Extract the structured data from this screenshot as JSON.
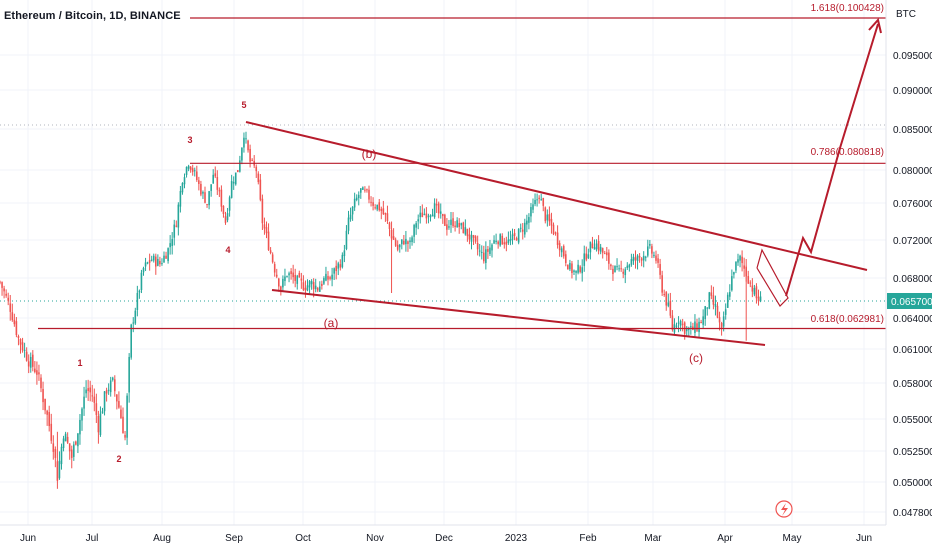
{
  "header": {
    "symbol_title": "Ethereum / Bitcoin, 1D, BINANCE"
  },
  "colors": {
    "up": "#26a69a",
    "down": "#ef5350",
    "drawing": "#b71c2c",
    "axis_text": "#131722",
    "grid": "#f0f3fa",
    "price_tag_bg": "#26a69a"
  },
  "chart_data": {
    "type": "candlestick",
    "title": "Ethereum / Bitcoin, 1D, BINANCE",
    "currency_label": "BTC",
    "y_ticks": [
      "0.095000",
      "0.090000",
      "0.085000",
      "0.080000",
      "0.076000",
      "0.072000",
      "0.068000",
      "0.064000",
      "0.061000",
      "0.058000",
      "0.055000",
      "0.052500",
      "0.050000",
      "0.047800"
    ],
    "x_ticks": [
      "Jun",
      "Jul",
      "Aug",
      "Sep",
      "Oct",
      "Nov",
      "Dec",
      "2023",
      "Feb",
      "Mar",
      "Apr",
      "May",
      "Jun"
    ],
    "last_price": "0.065700",
    "ylim": [
      0.0478,
      0.1005
    ],
    "price_path_daily_close": [
      [
        0,
        0.0676
      ],
      [
        5,
        0.065
      ],
      [
        9,
        0.062
      ],
      [
        14,
        0.06
      ],
      [
        18,
        0.059
      ],
      [
        22,
        0.056
      ],
      [
        26,
        0.053
      ],
      [
        28,
        0.0505
      ],
      [
        31,
        0.054
      ],
      [
        35,
        0.052
      ],
      [
        39,
        0.055
      ],
      [
        42,
        0.0575
      ],
      [
        45,
        0.057
      ],
      [
        48,
        0.0545
      ],
      [
        52,
        0.0575
      ],
      [
        55,
        0.058
      ],
      [
        58,
        0.056
      ],
      [
        61,
        0.0535
      ],
      [
        64,
        0.063
      ],
      [
        67,
        0.066
      ],
      [
        70,
        0.069
      ],
      [
        74,
        0.07
      ],
      [
        78,
        0.0695
      ],
      [
        82,
        0.071
      ],
      [
        86,
        0.074
      ],
      [
        89,
        0.079
      ],
      [
        92,
        0.081
      ],
      [
        95,
        0.0795
      ],
      [
        98,
        0.0775
      ],
      [
        101,
        0.076
      ],
      [
        104,
        0.0795
      ],
      [
        107,
        0.077
      ],
      [
        110,
        0.074
      ],
      [
        113,
        0.0785
      ],
      [
        116,
        0.08
      ],
      [
        119,
        0.0845
      ],
      [
        122,
        0.081
      ],
      [
        125,
        0.08
      ],
      [
        128,
        0.074
      ],
      [
        131,
        0.0715
      ],
      [
        134,
        0.069
      ],
      [
        137,
        0.067
      ],
      [
        140,
        0.0685
      ],
      [
        143,
        0.068
      ],
      [
        146,
        0.0675
      ],
      [
        149,
        0.0672
      ],
      [
        152,
        0.0675
      ],
      [
        155,
        0.067
      ],
      [
        158,
        0.0678
      ],
      [
        161,
        0.068
      ],
      [
        164,
        0.069
      ],
      [
        167,
        0.07
      ],
      [
        170,
        0.074
      ],
      [
        173,
        0.076
      ],
      [
        176,
        0.0775
      ],
      [
        179,
        0.077
      ],
      [
        182,
        0.076
      ],
      [
        185,
        0.0755
      ],
      [
        188,
        0.0745
      ],
      [
        191,
        0.0725
      ],
      [
        194,
        0.071
      ],
      [
        197,
        0.072
      ],
      [
        200,
        0.0715
      ],
      [
        203,
        0.074
      ],
      [
        206,
        0.0748
      ],
      [
        209,
        0.075
      ],
      [
        212,
        0.0755
      ],
      [
        215,
        0.0745
      ],
      [
        218,
        0.0735
      ],
      [
        221,
        0.074
      ],
      [
        224,
        0.0735
      ],
      [
        227,
        0.073
      ],
      [
        230,
        0.072
      ],
      [
        233,
        0.071
      ],
      [
        236,
        0.0702
      ],
      [
        239,
        0.0712
      ],
      [
        242,
        0.0722
      ],
      [
        245,
        0.072
      ],
      [
        248,
        0.0718
      ],
      [
        251,
        0.0722
      ],
      [
        254,
        0.073
      ],
      [
        257,
        0.074
      ],
      [
        260,
        0.0755
      ],
      [
        263,
        0.077
      ],
      [
        266,
        0.0745
      ],
      [
        269,
        0.0735
      ],
      [
        272,
        0.072
      ],
      [
        275,
        0.0705
      ],
      [
        278,
        0.069
      ],
      [
        281,
        0.0685
      ],
      [
        284,
        0.0695
      ],
      [
        287,
        0.071
      ],
      [
        290,
        0.0718
      ],
      [
        293,
        0.071
      ],
      [
        296,
        0.07
      ],
      [
        299,
        0.069
      ],
      [
        302,
        0.0685
      ],
      [
        305,
        0.0692
      ],
      [
        308,
        0.0698
      ],
      [
        311,
        0.07
      ],
      [
        314,
        0.0705
      ],
      [
        317,
        0.071
      ],
      [
        320,
        0.07
      ],
      [
        323,
        0.067
      ],
      [
        326,
        0.065
      ],
      [
        328,
        0.063
      ],
      [
        331,
        0.064
      ],
      [
        334,
        0.063
      ],
      [
        337,
        0.0628
      ],
      [
        340,
        0.0632
      ],
      [
        343,
        0.064
      ],
      [
        346,
        0.066
      ],
      [
        349,
        0.065
      ],
      [
        352,
        0.0625
      ],
      [
        355,
        0.066
      ],
      [
        358,
        0.069
      ],
      [
        361,
        0.07
      ],
      [
        363,
        0.069
      ],
      [
        366,
        0.0675
      ],
      [
        369,
        0.066
      ],
      [
        371,
        0.0657
      ]
    ]
  },
  "annotations": {
    "wave_labels": [
      "1",
      "2",
      "3",
      "4",
      "5",
      "(a)",
      "(b)",
      "(c)"
    ],
    "fib_labels": {
      "top": "1.618(0.100428)",
      "mid": "0.786(0.080818)",
      "low": "0.618(0.062981)"
    }
  }
}
